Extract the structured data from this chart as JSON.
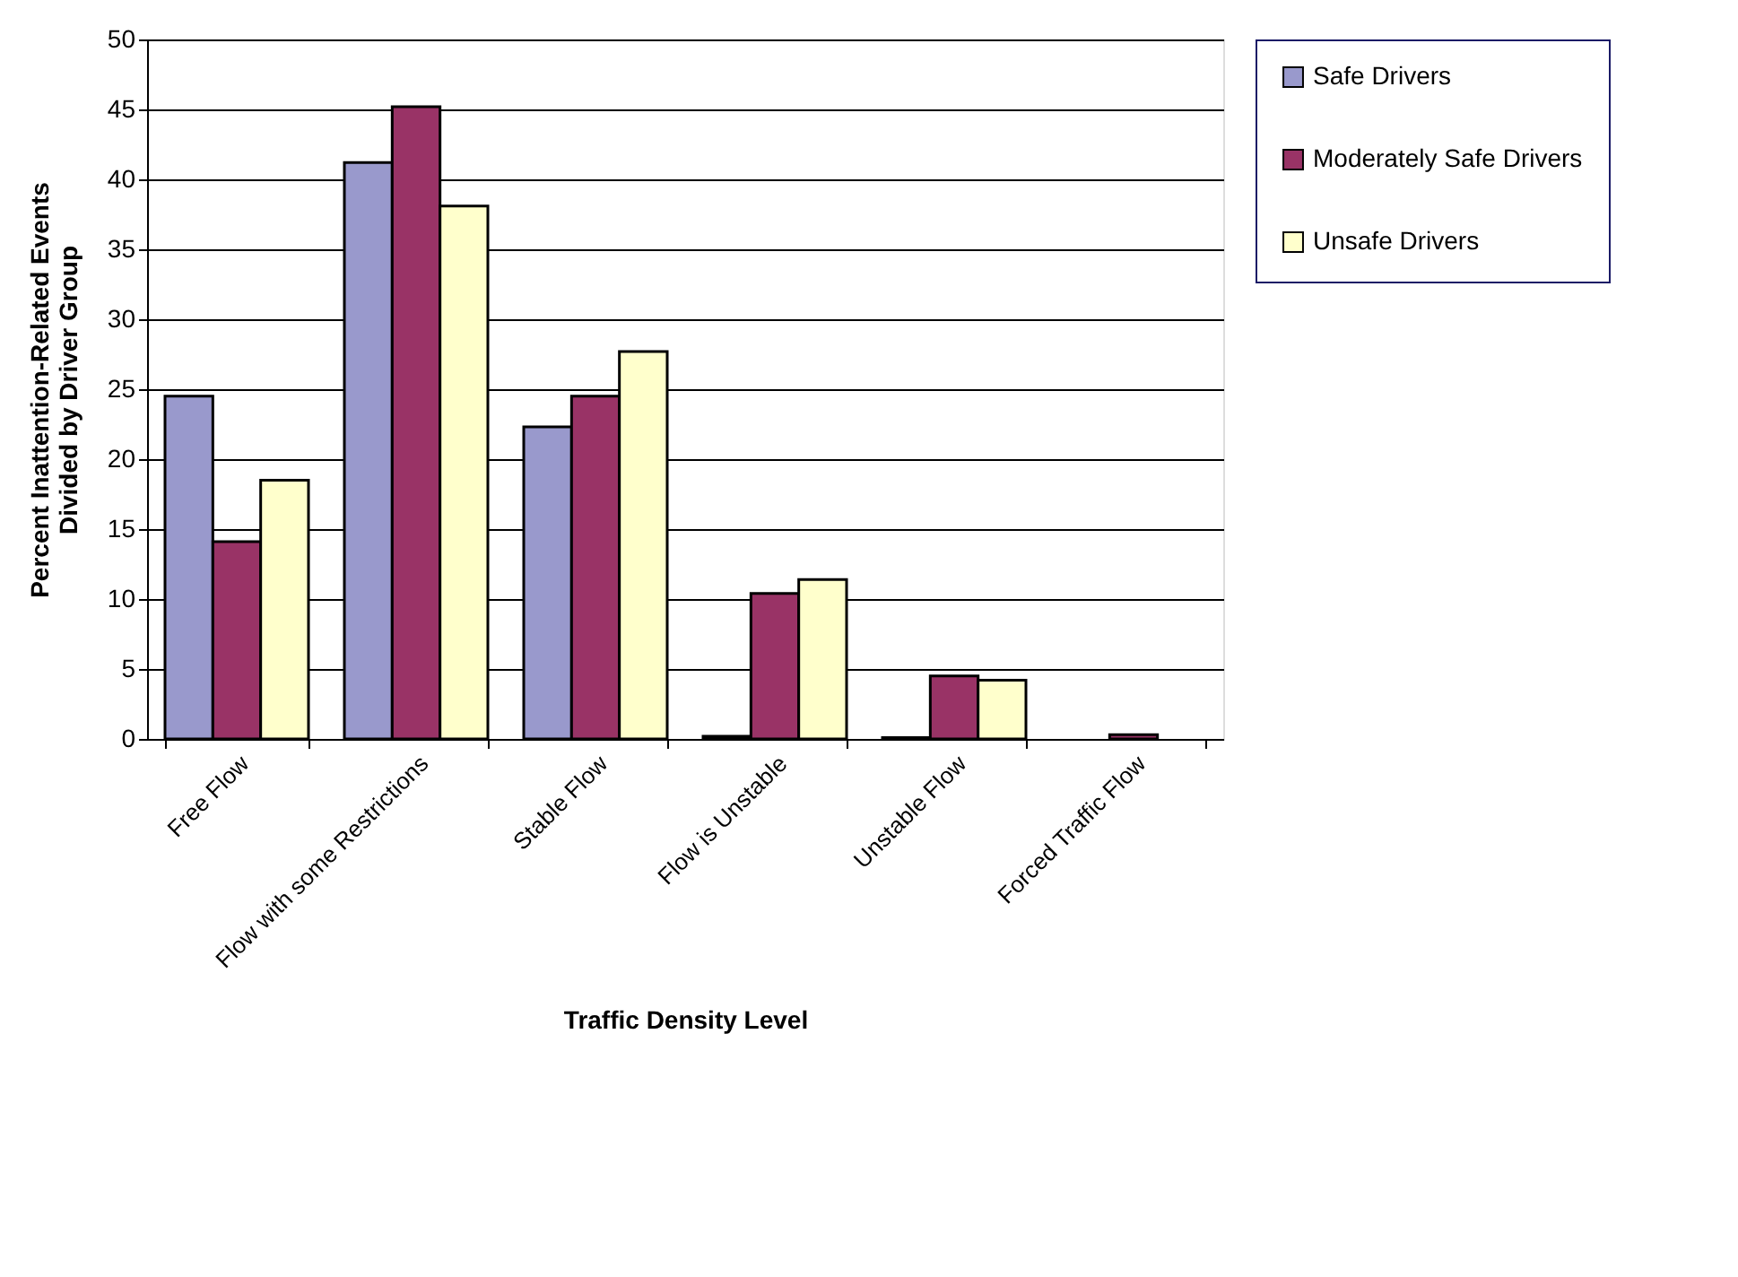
{
  "chart_data": {
    "type": "bar",
    "xlabel": "Traffic Density Level",
    "ylabel": "Percent Inattention-Related Events Divided by Driver Group",
    "categories": [
      "Free Flow",
      "Flow with some Restrictions",
      "Stable Flow",
      "Flow is Unstable",
      "Unstable Flow",
      "Forced Traffic Flow"
    ],
    "series": [
      {
        "name": "Safe Drivers",
        "color": "#9999cc",
        "values": [
          24.5,
          41.2,
          22.3,
          0.2,
          0.1,
          0
        ]
      },
      {
        "name": "Moderately Safe Drivers",
        "color": "#993366",
        "values": [
          14.1,
          45.2,
          24.5,
          10.4,
          4.5,
          0.3
        ]
      },
      {
        "name": "Unsafe Drivers",
        "color": "#ffffcc",
        "values": [
          18.5,
          38.1,
          27.7,
          11.4,
          4.2,
          0
        ]
      }
    ],
    "ylim": [
      0,
      50
    ],
    "yticks": [
      0,
      5,
      10,
      15,
      20,
      25,
      30,
      35,
      40,
      45,
      50
    ],
    "grid": "y",
    "legend": "right"
  }
}
